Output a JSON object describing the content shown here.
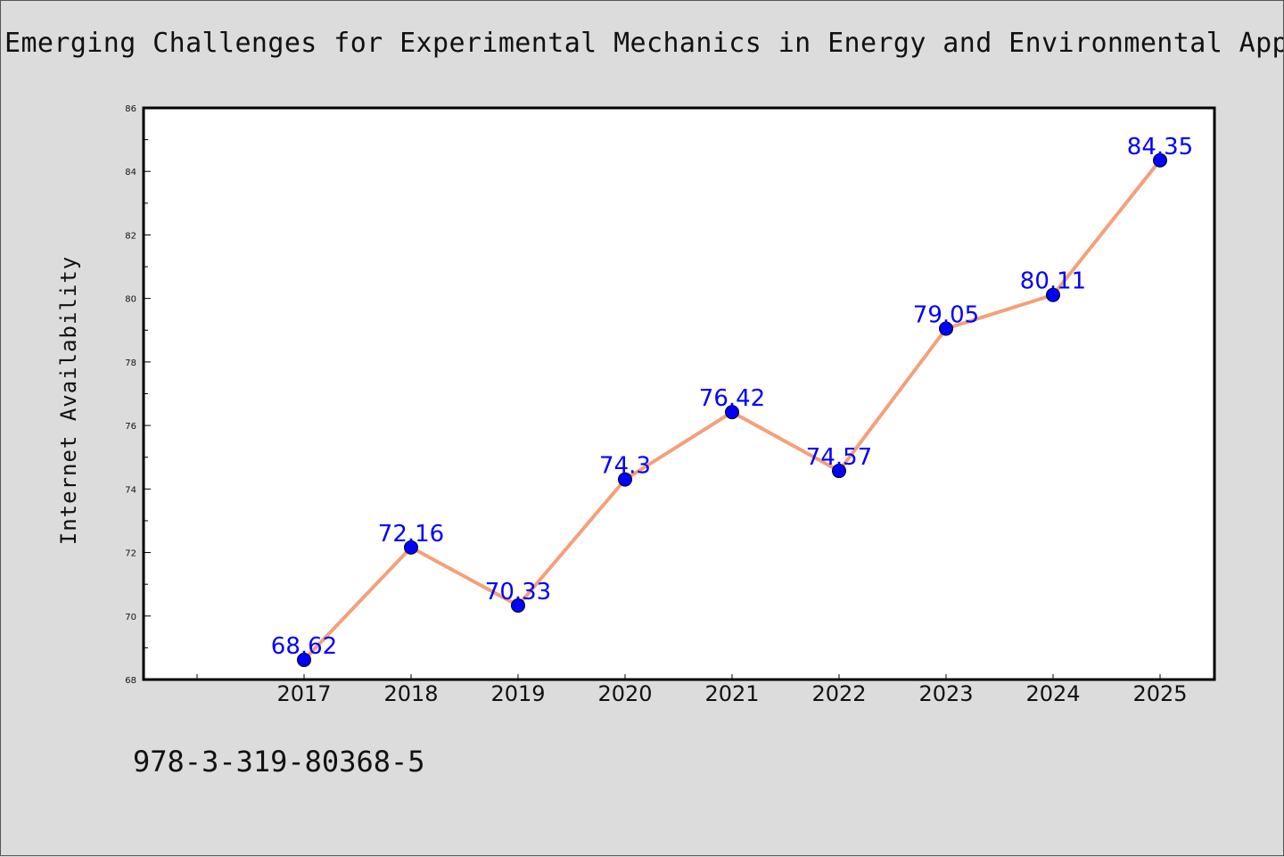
{
  "chart_data": {
    "type": "line",
    "title": "Emerging Challenges for Experimental Mechanics in Energy and Environmental Appli",
    "xlabel": "",
    "ylabel": "Internet Availability",
    "categories": [
      "2017",
      "2018",
      "2019",
      "2020",
      "2021",
      "2022",
      "2023",
      "2024",
      "2025"
    ],
    "values": [
      68.62,
      72.16,
      70.33,
      74.3,
      76.42,
      74.57,
      79.05,
      80.11,
      84.35
    ],
    "data_labels": [
      "68.62",
      "72.16",
      "70.33",
      "74.3",
      "76.42",
      "74.57",
      "79.05",
      "80.11",
      "84.35"
    ],
    "ylim": [
      68,
      86
    ],
    "yticks": [
      68,
      70,
      72,
      74,
      76,
      78,
      80,
      82,
      84,
      86
    ],
    "grid": false,
    "legend": "none",
    "colors": {
      "line": "#f4a07a",
      "marker": "#0000ff",
      "label": "#0000ff",
      "plot_bg": "#ffffff",
      "page_bg": "#dcdcdc"
    }
  },
  "footer": {
    "code": "978-3-319-80368-5"
  }
}
